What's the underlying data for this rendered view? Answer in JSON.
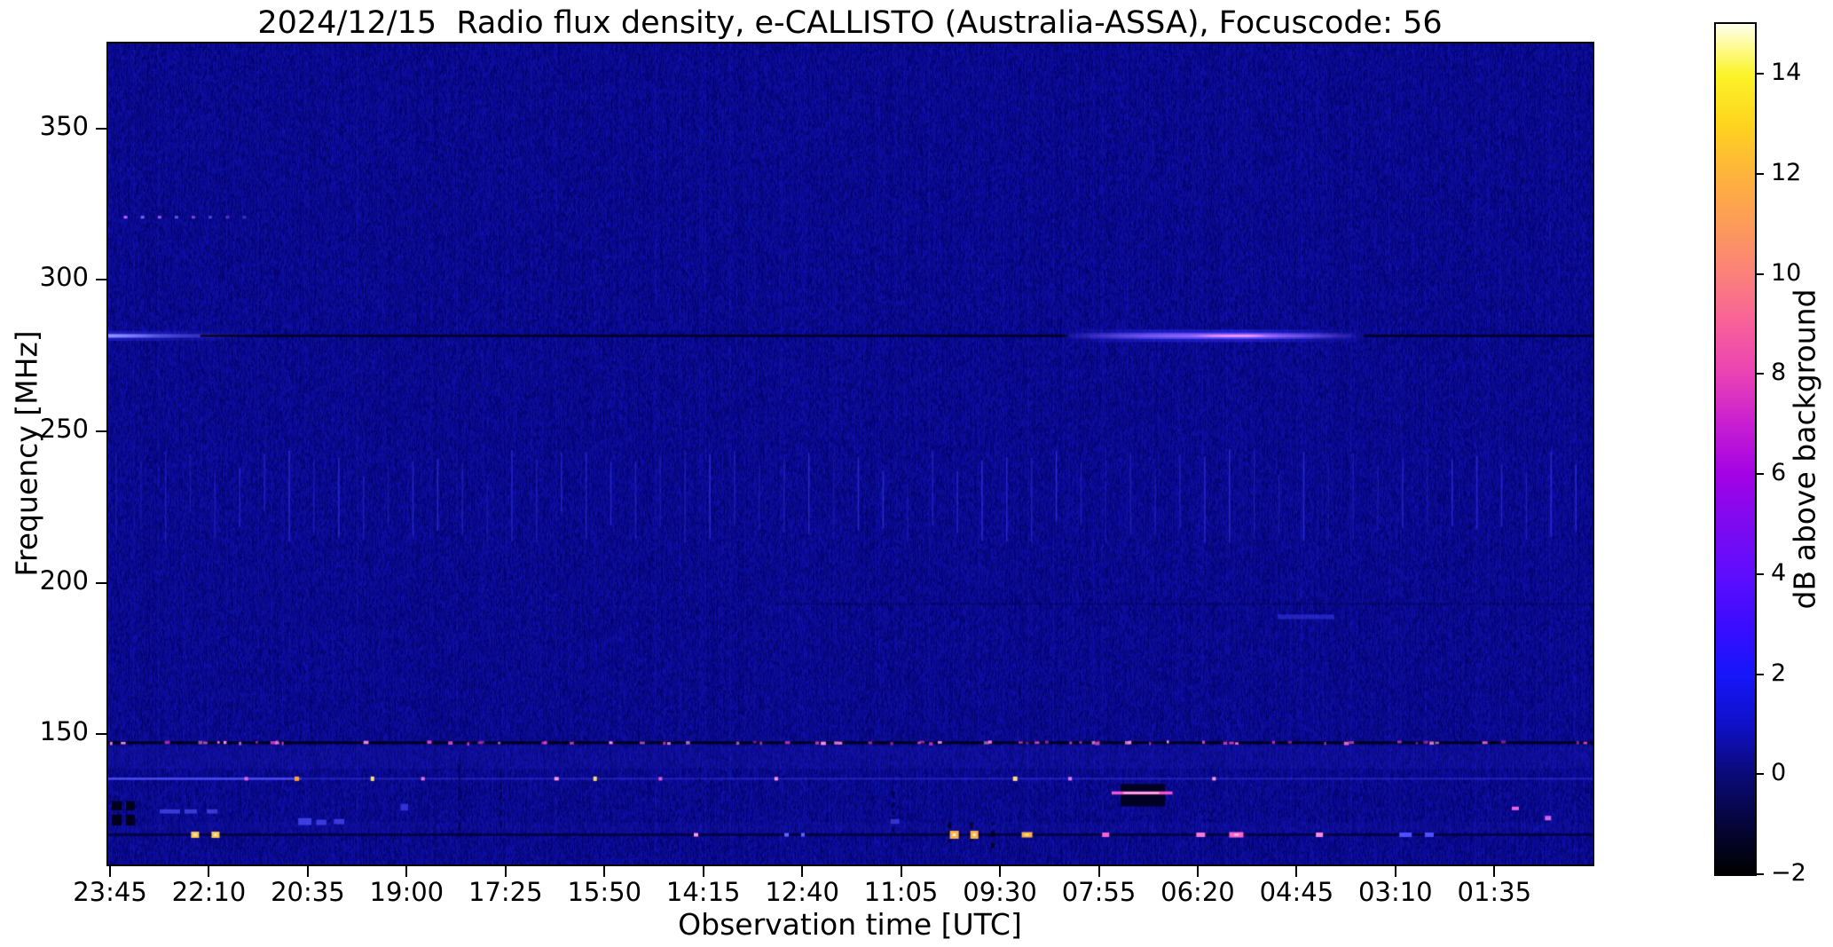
{
  "figure": {
    "title": "2024/12/15  Radio flux density, e-CALLISTO (Australia-ASSA), Focuscode: 56"
  },
  "chart_data": {
    "type": "heatmap",
    "title": "2024/12/15  Radio flux density, e-CALLISTO (Australia-ASSA), Focuscode: 56",
    "xlabel": "Observation time [UTC]",
    "ylabel": "Frequency [MHz]",
    "x_axis_reversed_time": true,
    "x_tick_labels": [
      "23:45",
      "22:10",
      "20:35",
      "19:00",
      "17:25",
      "15:50",
      "14:15",
      "12:40",
      "11:05",
      "09:30",
      "07:55",
      "06:20",
      "04:45",
      "03:10",
      "01:35"
    ],
    "y_tick_labels": [
      "350",
      "300",
      "250",
      "200",
      "150"
    ],
    "y_ticks_mhz": [
      350,
      300,
      250,
      200,
      150
    ],
    "y_range_mhz": [
      107,
      378
    ],
    "background_level_db": 0,
    "grid": false,
    "colorbar": {
      "label": "dB above background",
      "tick_labels": [
        "14",
        "12",
        "10",
        "8",
        "6",
        "4",
        "2",
        "0",
        "−2"
      ],
      "tick_values": [
        14,
        12,
        10,
        8,
        6,
        4,
        2,
        0,
        -2
      ],
      "range_db": [
        -2,
        15
      ],
      "stops": [
        {
          "pos": 0,
          "color": "#000000"
        },
        {
          "pos": 6,
          "color": "#05053c"
        },
        {
          "pos": 11.8,
          "color": "#0a0a78"
        },
        {
          "pos": 17.6,
          "color": "#1010c8"
        },
        {
          "pos": 23.5,
          "color": "#1616fa"
        },
        {
          "pos": 29.4,
          "color": "#3c0cff"
        },
        {
          "pos": 35.3,
          "color": "#5f0dfd"
        },
        {
          "pos": 41.2,
          "color": "#7e0af0"
        },
        {
          "pos": 47.1,
          "color": "#a302e4"
        },
        {
          "pos": 52.9,
          "color": "#c81ed2"
        },
        {
          "pos": 58.8,
          "color": "#e942b4"
        },
        {
          "pos": 64.7,
          "color": "#f8609b"
        },
        {
          "pos": 70.6,
          "color": "#fb8179"
        },
        {
          "pos": 76.5,
          "color": "#fd9b59"
        },
        {
          "pos": 82.4,
          "color": "#feb43b"
        },
        {
          "pos": 88.2,
          "color": "#fed41e"
        },
        {
          "pos": 94.1,
          "color": "#fbf42a"
        },
        {
          "pos": 100,
          "color": "#ffffec"
        }
      ]
    },
    "features": [
      {
        "name": "band-below-147",
        "type": "hband",
        "freq0": 138.5,
        "freq1": 146.2,
        "color": "#2828d2",
        "alpha": 0.15
      },
      {
        "name": "band-above-bottom",
        "type": "hband",
        "freq0": 117.5,
        "freq1": 121.0,
        "color": "#2828d2",
        "alpha": 0.1
      },
      {
        "name": "periodic-stripes-230mhz",
        "type": "stripes",
        "freq0": 213,
        "freq1": 244,
        "period_fx": 0.01667,
        "color": "#3c3cff",
        "alpha": 0.45
      },
      {
        "name": "faint-dark-line-193",
        "type": "line",
        "freq": 193,
        "fx0": 0.45,
        "fx1": 1.0,
        "w": 2,
        "color": "#000028",
        "alpha": 0.3
      },
      {
        "name": "faint-blue-dash-188",
        "type": "rect",
        "fx0": 0.788,
        "fx1": 0.826,
        "freq0": 188,
        "freq1": 189.5,
        "color": "#4444ff",
        "alpha": 0.45
      },
      {
        "name": "dotted-line-320",
        "type": "dots",
        "freq": 320.5,
        "fx0": 0.0105,
        "fx1": 0.0905,
        "count": 8,
        "size": 4,
        "colors": [
          "#c864ff",
          "#7878ff"
        ]
      },
      {
        "name": "281mhz-left-bright",
        "type": "glow",
        "freq": 281.5,
        "fx0": 0.0,
        "fx1": 0.1,
        "layers": [
          [
            11,
            "#2828dc",
            [
              [
                0,
                0.6
              ],
              [
                0.5,
                0.25
              ],
              [
                1,
                0
              ]
            ]
          ],
          [
            5,
            "#6060ff",
            [
              [
                0,
                0.9
              ],
              [
                0.45,
                0.3
              ],
              [
                1,
                0
              ]
            ]
          ],
          [
            3,
            "#9898ff",
            [
              [
                0,
                0.95
              ],
              [
                0.35,
                0.25
              ],
              [
                1,
                0
              ]
            ]
          ]
        ]
      },
      {
        "name": "281mhz-dark-line-a",
        "type": "line",
        "freq": 281.5,
        "fx0": 0.062,
        "fx1": 0.646,
        "w": 3,
        "color": "#000018",
        "alpha": 0.8
      },
      {
        "name": "281mhz-bright-emission",
        "type": "glow",
        "freq": 281.5,
        "fx0": 0.642,
        "fx1": 0.846,
        "layers": [
          [
            14,
            "#3232ff",
            [
              [
                0,
                0
              ],
              [
                0.3,
                0.4
              ],
              [
                0.6,
                0.5
              ],
              [
                1,
                0
              ]
            ]
          ],
          [
            7,
            "#6456ff",
            [
              [
                0,
                0
              ],
              [
                0.35,
                0.75
              ],
              [
                0.62,
                0.85
              ],
              [
                0.85,
                0.3
              ],
              [
                1,
                0
              ]
            ]
          ],
          [
            3.5,
            "#c878ff",
            [
              [
                0,
                0
              ],
              [
                0.42,
                0.5
              ],
              [
                0.5,
                0.95
              ],
              [
                0.62,
                1
              ],
              [
                0.72,
                0.5
              ],
              [
                1,
                0
              ]
            ]
          ],
          [
            2,
            "#ff9cff",
            [
              [
                0.45,
                0
              ],
              [
                0.55,
                0.9
              ],
              [
                0.62,
                0.9
              ],
              [
                0.68,
                0
              ]
            ]
          ]
        ]
      },
      {
        "name": "281mhz-dark-line-b",
        "type": "line",
        "freq": 281.5,
        "fx0": 0.846,
        "fx1": 1.0,
        "w": 3,
        "color": "#000018",
        "alpha": 0.8
      },
      {
        "name": "147mhz-line",
        "type": "line",
        "freq": 147.2,
        "fx0": 0.0,
        "fx1": 1.0,
        "w": 3,
        "color": "#000010",
        "alpha": 0.85
      },
      {
        "name": "147mhz-black-dashes",
        "type": "dashes_dark",
        "freq": 147.2,
        "count": 30,
        "wmin": 5,
        "wmax": 11,
        "h": 3,
        "color": "#000014"
      },
      {
        "name": "147mhz-pink-dots",
        "type": "dots_random",
        "freq": 147.2,
        "count": 80,
        "wmin": 2,
        "wmax": 6,
        "colors": [
          "#ff6ee6",
          "#e646d2",
          "#c832c8",
          "#ff96f0"
        ]
      },
      {
        "name": "135mhz-faint-line",
        "type": "line",
        "freq": 135.3,
        "fx0": 0.0,
        "fx1": 1.0,
        "w": 2,
        "color": "#3c3cf0",
        "alpha": 0.5
      },
      {
        "name": "135mhz-bright-left",
        "type": "line",
        "freq": 135.3,
        "fx0": 0.0,
        "fx1": 0.13,
        "w": 2.5,
        "color": "#5555ff",
        "alpha": 0.8
      },
      {
        "name": "135mhz-dot",
        "type": "dot",
        "fx": 0.093,
        "freq": 135.3,
        "w": 4,
        "h": 4,
        "color": "#e664dc"
      },
      {
        "name": "135mhz-dot",
        "type": "dot",
        "fx": 0.127,
        "freq": 135.3,
        "w": 5,
        "h": 5,
        "color": "#ffa03c"
      },
      {
        "name": "135mhz-dot",
        "type": "dot",
        "fx": 0.178,
        "freq": 135.3,
        "w": 4,
        "h": 5,
        "color": "#ffe07a"
      },
      {
        "name": "135mhz-dot",
        "type": "dot",
        "fx": 0.212,
        "freq": 135.3,
        "w": 4,
        "h": 4,
        "color": "#e66ee6"
      },
      {
        "name": "135mhz-dot",
        "type": "dot",
        "fx": 0.302,
        "freq": 135.3,
        "w": 5,
        "h": 4,
        "color": "#ff96e6"
      },
      {
        "name": "135mhz-dot",
        "type": "dot",
        "fx": 0.328,
        "freq": 135.3,
        "w": 4,
        "h": 5,
        "color": "#ffdc64"
      },
      {
        "name": "135mhz-dot",
        "type": "dot",
        "fx": 0.372,
        "freq": 135.3,
        "w": 4,
        "h": 4,
        "color": "#e65ad2"
      },
      {
        "name": "135mhz-dot",
        "type": "dot",
        "fx": 0.45,
        "freq": 135.3,
        "w": 4,
        "h": 4,
        "color": "#ff96dc"
      },
      {
        "name": "135mhz-dot",
        "type": "dot",
        "fx": 0.611,
        "freq": 135.3,
        "w": 5,
        "h": 5,
        "color": "#ffdc8c"
      },
      {
        "name": "135mhz-dot",
        "type": "dot",
        "fx": 0.648,
        "freq": 135.3,
        "w": 4,
        "h": 4,
        "color": "#e67ee6"
      },
      {
        "name": "135mhz-dot",
        "type": "dot",
        "fx": 0.745,
        "freq": 135.3,
        "w": 4,
        "h": 4,
        "color": "#ff96dc"
      },
      {
        "name": "rfi-vdash-col",
        "type": "vdashes",
        "fx": 0.236,
        "freq0": 117,
        "freq1": 140,
        "w": 2,
        "color": "#000030",
        "alpha": 0.8
      },
      {
        "name": "rfi-vdash-col",
        "type": "vdashes",
        "fx": 0.264,
        "freq0": 120,
        "freq1": 138,
        "w": 2,
        "color": "#000030",
        "alpha": 0.8
      },
      {
        "name": "rfi-vdash-col",
        "type": "vdashes",
        "fx": 0.398,
        "freq0": 124,
        "freq1": 139,
        "w": 2,
        "color": "#000030",
        "alpha": 0.8
      },
      {
        "name": "rfi-vdash-col",
        "type": "vdashes",
        "fx": 0.528,
        "freq0": 117,
        "freq1": 131,
        "w": 3,
        "color": "#000020",
        "alpha": 0.85
      },
      {
        "name": "black-block",
        "type": "rect",
        "fx0": 0.0024,
        "fx1": 0.009,
        "freq0": 124.9,
        "freq1": 127.9,
        "color": "#000014",
        "alpha": 0.92
      },
      {
        "name": "black-block",
        "type": "rect",
        "fx0": 0.012,
        "fx1": 0.0179,
        "freq0": 124.9,
        "freq1": 127.9,
        "color": "#000014",
        "alpha": 0.92
      },
      {
        "name": "black-block",
        "type": "rect",
        "fx0": 0.0024,
        "fx1": 0.009,
        "freq0": 119.9,
        "freq1": 123.4,
        "color": "#000014",
        "alpha": 0.92
      },
      {
        "name": "black-block",
        "type": "rect",
        "fx0": 0.012,
        "fx1": 0.0179,
        "freq0": 119.9,
        "freq1": 123.4,
        "color": "#000014",
        "alpha": 0.92
      },
      {
        "name": "blue-dash",
        "type": "rect",
        "fx0": 0.0347,
        "fx1": 0.0484,
        "freq0": 123.8,
        "freq1": 125.2,
        "color": "#4646e8",
        "alpha": 0.8
      },
      {
        "name": "blue-dash",
        "type": "rect",
        "fx0": 0.0514,
        "fx1": 0.0598,
        "freq0": 123.8,
        "freq1": 125.2,
        "color": "#4646e8",
        "alpha": 0.8
      },
      {
        "name": "blue-dash",
        "type": "rect",
        "fx0": 0.0664,
        "fx1": 0.0735,
        "freq0": 123.8,
        "freq1": 125.2,
        "color": "#4646e8",
        "alpha": 0.8
      },
      {
        "name": "blue-blob",
        "type": "rect",
        "fx0": 0.128,
        "fx1": 0.137,
        "freq0": 120.0,
        "freq1": 122.3,
        "color": "#4646f0",
        "alpha": 0.85
      },
      {
        "name": "blue-blob",
        "type": "rect",
        "fx0": 0.14,
        "fx1": 0.147,
        "freq0": 120.0,
        "freq1": 121.8,
        "color": "#4646f0",
        "alpha": 0.8
      },
      {
        "name": "blue-blob",
        "type": "rect",
        "fx0": 0.152,
        "fx1": 0.159,
        "freq0": 120.3,
        "freq1": 122.0,
        "color": "#4646f0",
        "alpha": 0.8
      },
      {
        "name": "blue-blob",
        "type": "rect",
        "fx0": 0.197,
        "fx1": 0.202,
        "freq0": 124.8,
        "freq1": 127.0,
        "color": "#3c3ce6",
        "alpha": 0.8
      },
      {
        "name": "blue-blob",
        "type": "rect",
        "fx0": 0.527,
        "fx1": 0.533,
        "freq0": 120.4,
        "freq1": 122.0,
        "color": "#4646f0",
        "alpha": 0.7
      },
      {
        "name": "rfi-box-07utc",
        "type": "rect",
        "fx0": 0.682,
        "fx1": 0.712,
        "freq0": 126.2,
        "freq1": 133.6,
        "color": "#000016",
        "alpha": 0.88
      },
      {
        "name": "rfi-box-pink-line",
        "type": "line",
        "freq": 130.6,
        "fx0": 0.676,
        "fx1": 0.717,
        "w": 3.5,
        "color": "#ff5ad2",
        "alpha": 0.95
      },
      {
        "name": "rfi-box-pink-core",
        "type": "line",
        "freq": 130.6,
        "fx0": 0.684,
        "fx1": 0.708,
        "w": 1.8,
        "color": "#ffd2f0",
        "alpha": 0.9
      },
      {
        "name": "bottom-line-117",
        "type": "line",
        "freq": 116.8,
        "fx0": 0.0,
        "fx1": 1.0,
        "w": 2.5,
        "color": "#000020",
        "alpha": 0.75
      },
      {
        "name": "vdash-flank",
        "type": "vdashes",
        "fx": 0.5657,
        "freq0": 112.5,
        "freq1": 121,
        "w": 4,
        "color": "#000010",
        "alpha": 0.9
      },
      {
        "name": "vdash-flank",
        "type": "vdashes",
        "fx": 0.5803,
        "freq0": 112.5,
        "freq1": 121,
        "w": 4,
        "color": "#000010",
        "alpha": 0.9
      },
      {
        "name": "vdash-flank",
        "type": "vdashes",
        "fx": 0.5948,
        "freq0": 112.5,
        "freq1": 121,
        "w": 4,
        "color": "#000010",
        "alpha": 0.9
      },
      {
        "name": "bottom-blob",
        "type": "dot",
        "fx": 0.0585,
        "freq": 116.8,
        "w": 9,
        "h": 7,
        "color": "#ffc850",
        "core": "#fff8e0"
      },
      {
        "name": "bottom-blob",
        "type": "dot",
        "fx": 0.0723,
        "freq": 116.8,
        "w": 9,
        "h": 7,
        "color": "#ffc850",
        "core": "#fff8e0"
      },
      {
        "name": "bottom-blob",
        "type": "dot",
        "fx": 0.396,
        "freq": 116.8,
        "w": 5,
        "h": 4,
        "color": "#ff9ae6"
      },
      {
        "name": "bottom-blob",
        "type": "dot",
        "fx": 0.457,
        "freq": 116.8,
        "w": 5,
        "h": 4,
        "color": "#6464ff"
      },
      {
        "name": "bottom-blob",
        "type": "dot",
        "fx": 0.468,
        "freq": 116.8,
        "w": 4,
        "h": 4,
        "color": "#6464ff"
      },
      {
        "name": "bottom-blob",
        "type": "dot",
        "fx": 0.57,
        "freq": 116.8,
        "w": 10,
        "h": 9,
        "color": "#ffb446",
        "core": "#fff6dc"
      },
      {
        "name": "bottom-blob",
        "type": "dot",
        "fx": 0.5835,
        "freq": 116.8,
        "w": 9,
        "h": 9,
        "color": "#ffb446",
        "core": "#fff6dc"
      },
      {
        "name": "bottom-blob",
        "type": "dot",
        "fx": 0.619,
        "freq": 116.8,
        "w": 12,
        "h": 6,
        "color": "#ffb446",
        "core": "#ffe9a0"
      },
      {
        "name": "bottom-blob",
        "type": "dot",
        "fx": 0.672,
        "freq": 116.8,
        "w": 8,
        "h": 5,
        "color": "#ff64d2"
      },
      {
        "name": "bottom-blob",
        "type": "dot",
        "fx": 0.736,
        "freq": 116.8,
        "w": 10,
        "h": 5,
        "color": "#ff78dc"
      },
      {
        "name": "bottom-blob",
        "type": "dot",
        "fx": 0.76,
        "freq": 116.8,
        "w": 16,
        "h": 6,
        "color": "#ff64c8",
        "core": "#ffc8ec"
      },
      {
        "name": "bottom-blob",
        "type": "dot",
        "fx": 0.816,
        "freq": 116.8,
        "w": 8,
        "h": 5,
        "color": "#ff8cdc"
      },
      {
        "name": "bottom-blob",
        "type": "dot",
        "fx": 0.874,
        "freq": 116.8,
        "w": 14,
        "h": 5,
        "color": "#5050ff"
      },
      {
        "name": "bottom-blob",
        "type": "dot",
        "fx": 0.89,
        "freq": 116.8,
        "w": 10,
        "h": 5,
        "color": "#5050ff"
      },
      {
        "name": "pink-dot",
        "type": "dot",
        "fx": 0.948,
        "freq": 125.5,
        "w": 8,
        "h": 4,
        "color": "#e664e6"
      },
      {
        "name": "pink-dot",
        "type": "dot",
        "fx": 0.97,
        "freq": 122.3,
        "w": 7,
        "h": 5,
        "color": "#d264e6"
      }
    ]
  }
}
